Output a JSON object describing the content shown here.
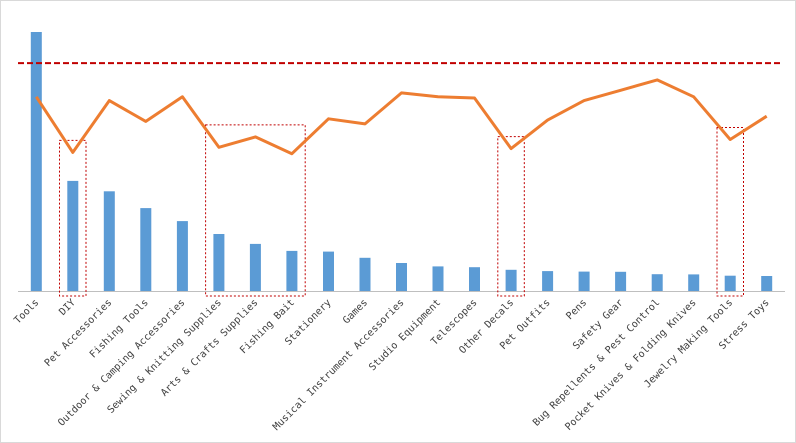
{
  "chart_data": {
    "type": "bar",
    "title": "",
    "xlabel": "",
    "ylabel": "",
    "categories": [
      "Tools",
      "DIY",
      "Pet Accessories",
      "Fishing Tools",
      "Outdoor & Camping Accessories",
      "Sewing & Knitting Supplies",
      "Arts & Crafts Supplies",
      "Fishing Bait",
      "Stationery",
      "Games",
      "Musical Instrument Accessories",
      "Studio Equipment",
      "Telescopes",
      "Other Decals",
      "Pet Outfits",
      "Pens",
      "Safety Gear",
      "Bug Repellents & Pest Control",
      "Pocket Knives & Folding Knives",
      "Jewelry Making Tools",
      "Stress Toys"
    ],
    "series": [
      {
        "name": "bars",
        "type": "bar",
        "color": "#5b9bd5",
        "values": [
          100,
          42.5,
          38.5,
          32,
          27,
          22,
          18.2,
          15.5,
          15.2,
          12.8,
          10.8,
          9.5,
          9.2,
          8.2,
          7.7,
          7.5,
          7.4,
          6.5,
          6.4,
          5.9,
          5.8
        ]
      },
      {
        "name": "line",
        "type": "line",
        "color": "#ed7d31",
        "values": [
          75,
          53.5,
          73.5,
          65.5,
          75,
          55.5,
          59.5,
          53,
          66.5,
          64.5,
          76.5,
          75,
          74.5,
          55,
          66,
          73.5,
          77.5,
          81.5,
          75,
          58.5,
          67.5
        ]
      }
    ],
    "reference_line": {
      "value": 88,
      "color": "#c00000",
      "style": "dashed"
    },
    "highlight_groups": [
      {
        "from_index": 1,
        "to_index": 1
      },
      {
        "from_index": 5,
        "to_index": 7
      },
      {
        "from_index": 13,
        "to_index": 13
      },
      {
        "from_index": 19,
        "to_index": 19
      }
    ],
    "highlight_color": "#c00000",
    "axis_color": "#bfbfbf",
    "ylim": [
      0,
      112
    ],
    "grid": false,
    "legend": "none"
  }
}
